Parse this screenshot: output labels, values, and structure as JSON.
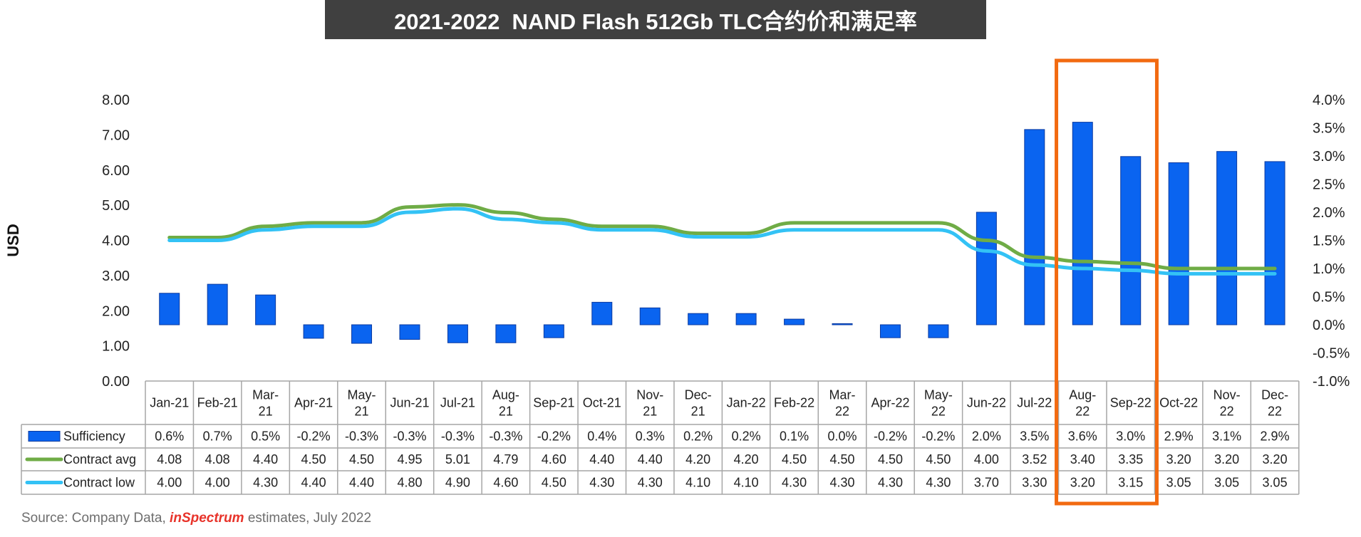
{
  "title": "2021-2022  NAND Flash 512Gb TLC合约价和满足率",
  "source": {
    "prefix": "Source: Company Data, ",
    "brand_red": "in",
    "brand_rest": "Spectrum",
    "suffix": " estimates, July 2022"
  },
  "colors": {
    "title_bg": "#404040",
    "bar": "#0a64f0",
    "contract_avg": "#6fac46",
    "contract_low": "#33c2f5",
    "highlight_box": "#f26a10",
    "grid": "#bfbfbf"
  },
  "chart_data": {
    "type": "bar",
    "title": "2021-2022  NAND Flash 512Gb TLC合约价和满足率",
    "ylabel": "USD",
    "ylim": [
      0,
      8
    ],
    "y2lim": [
      -1,
      4
    ],
    "y_ticks": [
      "0.00",
      "1.00",
      "2.00",
      "3.00",
      "4.00",
      "5.00",
      "6.00",
      "7.00",
      "8.00"
    ],
    "y2_ticks": [
      "-1.0%",
      "-0.5%",
      "0.0%",
      "0.5%",
      "1.0%",
      "1.5%",
      "2.0%",
      "2.5%",
      "3.0%",
      "3.5%",
      "4.0%"
    ],
    "categories": [
      "Jan-21",
      "Feb-21",
      "Mar-21",
      "Apr-21",
      "May-21",
      "Jun-21",
      "Jul-21",
      "Aug-21",
      "Sep-21",
      "Oct-21",
      "Nov-21",
      "Dec-21",
      "Jan-22",
      "Feb-22",
      "Mar-22",
      "Apr-22",
      "May-22",
      "Jun-22",
      "Jul-22",
      "Aug-22",
      "Sep-22",
      "Oct-22",
      "Nov-22",
      "Dec-22"
    ],
    "category_labels": [
      [
        "Jan-21"
      ],
      [
        "Feb-21"
      ],
      [
        "Mar-",
        "21"
      ],
      [
        "Apr-21"
      ],
      [
        "May-",
        "21"
      ],
      [
        "Jun-21"
      ],
      [
        "Jul-21"
      ],
      [
        "Aug-",
        "21"
      ],
      [
        "Sep-21"
      ],
      [
        "Oct-21"
      ],
      [
        "Nov-",
        "21"
      ],
      [
        "Dec-",
        "21"
      ],
      [
        "Jan-22"
      ],
      [
        "Feb-22"
      ],
      [
        "Mar-",
        "22"
      ],
      [
        "Apr-22"
      ],
      [
        "May-",
        "22"
      ],
      [
        "Jun-22"
      ],
      [
        "Jul-22"
      ],
      [
        "Aug-",
        "22"
      ],
      [
        "Sep-22"
      ],
      [
        "Oct-22"
      ],
      [
        "Nov-",
        "22"
      ],
      [
        "Dec-",
        "22"
      ]
    ],
    "highlight": [
      "Aug-22",
      "Sep-22"
    ],
    "series": [
      {
        "name": "Sufficiency",
        "type": "bar",
        "axis": "right",
        "values": [
          0.56,
          0.72,
          0.53,
          -0.24,
          -0.33,
          -0.26,
          -0.32,
          -0.32,
          -0.23,
          0.4,
          0.3,
          0.2,
          0.2,
          0.1,
          0.02,
          -0.23,
          -0.23,
          2.0,
          3.47,
          3.6,
          2.99,
          2.88,
          3.08,
          2.9
        ],
        "labels": [
          "0.6%",
          "0.7%",
          "0.5%",
          "-0.2%",
          "-0.3%",
          "-0.3%",
          "-0.3%",
          "-0.3%",
          "-0.2%",
          "0.4%",
          "0.3%",
          "0.2%",
          "0.2%",
          "0.1%",
          "0.0%",
          "-0.2%",
          "-0.2%",
          "2.0%",
          "3.5%",
          "3.6%",
          "3.0%",
          "2.9%",
          "3.1%",
          "2.9%"
        ]
      },
      {
        "name": "Contract avg",
        "type": "line",
        "axis": "left",
        "values": [
          4.08,
          4.08,
          4.4,
          4.5,
          4.5,
          4.95,
          5.01,
          4.79,
          4.6,
          4.4,
          4.4,
          4.2,
          4.2,
          4.5,
          4.5,
          4.5,
          4.5,
          4.0,
          3.52,
          3.4,
          3.35,
          3.2,
          3.2,
          3.2
        ],
        "labels": [
          "4.08",
          "4.08",
          "4.40",
          "4.50",
          "4.50",
          "4.95",
          "5.01",
          "4.79",
          "4.60",
          "4.40",
          "4.40",
          "4.20",
          "4.20",
          "4.50",
          "4.50",
          "4.50",
          "4.50",
          "4.00",
          "3.52",
          "3.40",
          "3.35",
          "3.20",
          "3.20",
          "3.20"
        ]
      },
      {
        "name": "Contract low",
        "type": "line",
        "axis": "left",
        "values": [
          4.0,
          4.0,
          4.3,
          4.4,
          4.4,
          4.8,
          4.9,
          4.6,
          4.5,
          4.3,
          4.3,
          4.1,
          4.1,
          4.3,
          4.3,
          4.3,
          4.3,
          3.7,
          3.3,
          3.2,
          3.15,
          3.05,
          3.05,
          3.05
        ],
        "labels": [
          "4.00",
          "4.00",
          "4.30",
          "4.40",
          "4.40",
          "4.80",
          "4.90",
          "4.60",
          "4.50",
          "4.30",
          "4.30",
          "4.10",
          "4.10",
          "4.30",
          "4.30",
          "4.30",
          "4.30",
          "3.70",
          "3.30",
          "3.20",
          "3.15",
          "3.05",
          "3.05",
          "3.05"
        ]
      }
    ]
  }
}
